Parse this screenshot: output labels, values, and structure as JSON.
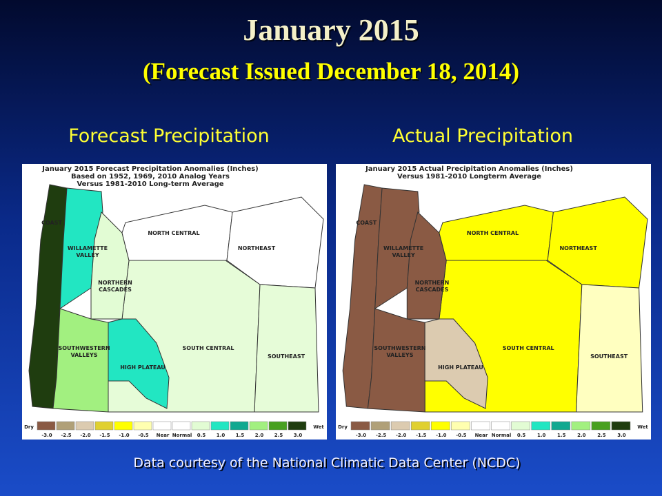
{
  "title": "January 2015",
  "subtitle": "(Forecast Issued December 18, 2014)",
  "maps": [
    {
      "heading": "Forecast Precipitation",
      "title_lines": [
        "January 2015 Forecast Precipitation Anomalies (Inches)",
        "Based on 1952, 1969, 2010 Analog Years",
        "Versus 1981-2010 Long-term Average"
      ],
      "regions": [
        {
          "key": "south_central",
          "label_lines": [
            "SOUTH CENTRAL"
          ],
          "color": "#e6fcd8"
        },
        {
          "key": "coast",
          "label_lines": [
            "COAST"
          ],
          "color": "#1f3d0f"
        },
        {
          "key": "willamette",
          "label_lines": [
            "WILLAMETTE",
            "VALLEY"
          ],
          "color": "#22e6c2"
        },
        {
          "key": "northern_cascades",
          "label_lines": [
            "NORTHERN",
            "CASCADES"
          ],
          "color": "#e2fcd4"
        },
        {
          "key": "southwestern",
          "label_lines": [
            "SOUTHWESTERN",
            "VALLEYS"
          ],
          "color": "#a2f080"
        },
        {
          "key": "high_plateau",
          "label_lines": [
            "HIGH PLATEAU"
          ],
          "color": "#22e6c2"
        },
        {
          "key": "north_central",
          "label_lines": [
            "NORTH CENTRAL"
          ],
          "color": "#ffffff"
        },
        {
          "key": "northeast",
          "label_lines": [
            "NORTHEAST"
          ],
          "color": "#ffffff"
        },
        {
          "key": "southeast",
          "label_lines": [
            "SOUTHEAST"
          ],
          "color": "#e6fcd8"
        }
      ]
    },
    {
      "heading": "Actual Precipitation",
      "title_lines": [
        "January 2015 Actual Precipitation Anomalies (Inches)",
        "Versus 1981-2010 Longterm Average"
      ],
      "regions": [
        {
          "key": "south_central",
          "label_lines": [
            "SOUTH CENTRAL"
          ],
          "color": "#ffff00"
        },
        {
          "key": "coast",
          "label_lines": [
            "COAST"
          ],
          "color": "#8a5a44"
        },
        {
          "key": "willamette",
          "label_lines": [
            "WILLAMETTE",
            "VALLEY"
          ],
          "color": "#8a5a44"
        },
        {
          "key": "northern_cascades",
          "label_lines": [
            "NORTHERN",
            "CASCADES"
          ],
          "color": "#8a5a44"
        },
        {
          "key": "southwestern",
          "label_lines": [
            "SOUTHWESTERN",
            "VALLEYS"
          ],
          "color": "#8a5a44"
        },
        {
          "key": "high_plateau",
          "label_lines": [
            "HIGH PLATEAU"
          ],
          "color": "#dccbb0"
        },
        {
          "key": "north_central",
          "label_lines": [
            "NORTH CENTRAL"
          ],
          "color": "#ffff00"
        },
        {
          "key": "northeast",
          "label_lines": [
            "NORTHEAST"
          ],
          "color": "#ffff00"
        },
        {
          "key": "southeast",
          "label_lines": [
            "SOUTHEAST"
          ],
          "color": "#ffffc0"
        }
      ]
    }
  ],
  "legend": {
    "dry": "Dry",
    "wet": "Wet",
    "colors": [
      "#8a5a44",
      "#b0a078",
      "#dccbb0",
      "#e0d030",
      "#ffff00",
      "#ffffb0",
      "#ffffff",
      "#ffffff",
      "#e2fcd4",
      "#22e6c2",
      "#10a890",
      "#a2f080",
      "#48a020",
      "#1f3d0f"
    ],
    "labels": [
      "-3.0",
      "-2.5",
      "-2.0",
      "-1.5",
      "-1.0",
      "-0.5",
      "Near",
      "Normal",
      "0.5",
      "1.0",
      "1.5",
      "2.0",
      "2.5",
      "3.0"
    ]
  },
  "footer": "Data courtesy of the National Climatic Data Center (NCDC)"
}
